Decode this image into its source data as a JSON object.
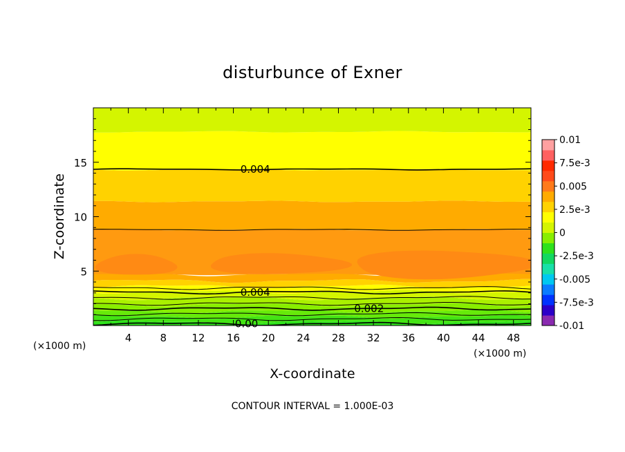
{
  "chart_data": {
    "type": "contour",
    "title": "disturbunce of Exner",
    "xlabel": "X-coordinate",
    "ylabel": "Z-coordinate",
    "x_unit": "(×1000 m)",
    "y_unit": "(×1000 m)",
    "xlim": [
      0,
      50
    ],
    "ylim": [
      0,
      20
    ],
    "x_ticks": [
      4,
      8,
      12,
      16,
      20,
      24,
      28,
      32,
      36,
      40,
      44,
      48
    ],
    "y_ticks": [
      5,
      10,
      15
    ],
    "contour_interval_text": "CONTOUR INTERVAL = 1.000E-03",
    "colorbar": {
      "min": -0.01,
      "max": 0.01,
      "tick_values": [
        0.01,
        0.0075,
        0.005,
        0.0025,
        0,
        -0.0025,
        -0.005,
        -0.0075,
        -0.01
      ],
      "tick_labels": [
        "0.01",
        "7.5e-3",
        "0.005",
        "2.5e-3",
        "0",
        "-2.5e-3",
        "-0.005",
        "-7.5e-3",
        "-0.01"
      ],
      "colors": [
        "#8a2ab0",
        "#2b00c8",
        "#0033ff",
        "#0a7cff",
        "#00c8f0",
        "#18e0a8",
        "#12d860",
        "#2ee11c",
        "#88ee00",
        "#d4f500",
        "#ffff00",
        "#ffd200",
        "#ffab00",
        "#ff7a1a",
        "#ff4a1a",
        "#ff2a00",
        "#ff6060",
        "#ffa0a0"
      ]
    },
    "bands": [
      {
        "z": [
          0.0,
          0.3
        ],
        "value": 0.0,
        "color": "#2ee11c"
      },
      {
        "z": [
          0.3,
          0.8
        ],
        "value": 0.0005,
        "color": "#44e414"
      },
      {
        "z": [
          0.8,
          1.3
        ],
        "value": 0.001,
        "color": "#66ea0a"
      },
      {
        "z": [
          1.3,
          1.9
        ],
        "value": 0.0015,
        "color": "#88ee00"
      },
      {
        "z": [
          1.9,
          2.5
        ],
        "value": 0.002,
        "color": "#aaf000"
      },
      {
        "z": [
          2.5,
          3.1
        ],
        "value": 0.0025,
        "color": "#d4f500"
      },
      {
        "z": [
          3.1,
          3.6
        ],
        "value": 0.0035,
        "color": "#ffff00"
      },
      {
        "z": [
          3.6,
          4.1
        ],
        "value": 0.0045,
        "color": "#ffd200"
      },
      {
        "z": [
          4.1,
          4.7
        ],
        "value": 0.005,
        "color": "#ffab00"
      },
      {
        "z": [
          4.7,
          8.8
        ],
        "value": 0.006,
        "color": "#ff9a10"
      },
      {
        "z": [
          8.8,
          11.4
        ],
        "value": 0.005,
        "color": "#ffab00"
      },
      {
        "z": [
          11.4,
          14.3
        ],
        "value": 0.0045,
        "color": "#ffd200"
      },
      {
        "z": [
          14.3,
          17.8
        ],
        "value": 0.0035,
        "color": "#ffff00"
      },
      {
        "z": [
          17.8,
          20.0
        ],
        "value": 0.0025,
        "color": "#d4f500"
      }
    ],
    "maxima_patches": [
      {
        "x": [
          0.3,
          9.5
        ],
        "z": [
          4.6,
          6.5
        ],
        "value": 0.0065,
        "color": "#ff8a14"
      },
      {
        "x": [
          13,
          29
        ],
        "z": [
          4.7,
          6.6
        ],
        "value": 0.0065,
        "color": "#ff8a14"
      },
      {
        "x": [
          29.5,
          50
        ],
        "z": [
          4.3,
          6.9
        ],
        "value": 0.0065,
        "color": "#ff8a14"
      }
    ],
    "contours": [
      {
        "z": 14.35,
        "value": 0.004,
        "label": "0.004",
        "label_x": 18.5,
        "bold": true
      },
      {
        "z": 8.8,
        "value": 0.005,
        "label": "",
        "label_x": null,
        "bold": false
      },
      {
        "z": 3.05,
        "value": 0.004,
        "label": "0.004",
        "label_x": 18.5,
        "bold": true
      },
      {
        "z": 3.45,
        "value": 0.0045,
        "label": "",
        "label_x": null,
        "bold": false
      },
      {
        "z": 2.55,
        "value": 0.003,
        "label": "",
        "label_x": null,
        "bold": false
      },
      {
        "z": 2.0,
        "value": 0.0025,
        "label": "",
        "label_x": null,
        "bold": false
      },
      {
        "z": 1.55,
        "value": 0.002,
        "label": "0.002",
        "label_x": 31.5,
        "bold": true
      },
      {
        "z": 1.05,
        "value": 0.0015,
        "label": "",
        "label_x": null,
        "bold": false
      },
      {
        "z": 0.6,
        "value": 0.001,
        "label": "",
        "label_x": null,
        "bold": false
      },
      {
        "z": 0.15,
        "value": 0.0,
        "label": "0.00",
        "label_x": 17.5,
        "bold": true
      }
    ]
  }
}
